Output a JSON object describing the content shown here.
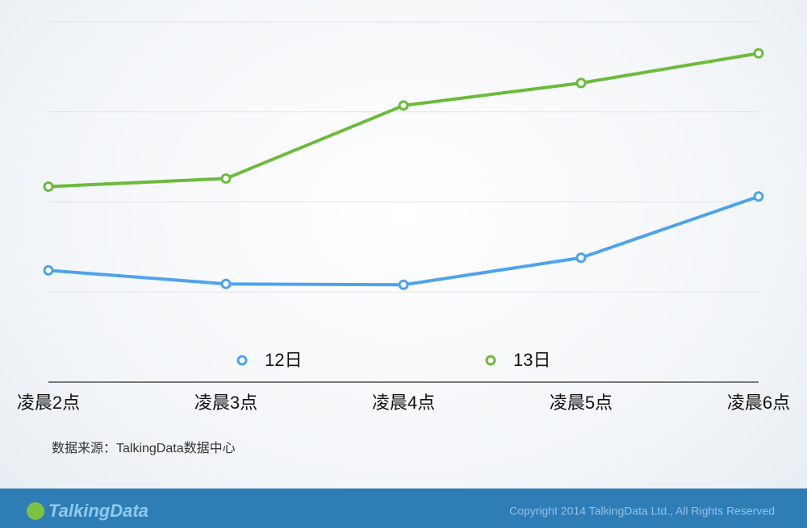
{
  "chart_data": {
    "type": "line",
    "categories": [
      "凌晨2点",
      "凌晨3点",
      "凌晨4点",
      "凌晨5点",
      "凌晨6点"
    ],
    "series": [
      {
        "name": "12日",
        "color": "#4ea3ee",
        "values": [
          1.24,
          1.09,
          1.08,
          1.38,
          2.06
        ]
      },
      {
        "name": "13日",
        "color": "#6cbb3c",
        "values": [
          2.17,
          2.26,
          3.07,
          3.32,
          3.65
        ]
      }
    ],
    "ylim": [
      0,
      4
    ],
    "yticks": [
      1,
      2,
      3,
      4
    ],
    "grid": true,
    "legend": "bottom"
  },
  "source": "数据来源：TalkingData数据中心",
  "footer": {
    "logo": "TalkingData",
    "copyright": "Copyright 2014 TalkingData Ltd., All Rights Reserved"
  }
}
